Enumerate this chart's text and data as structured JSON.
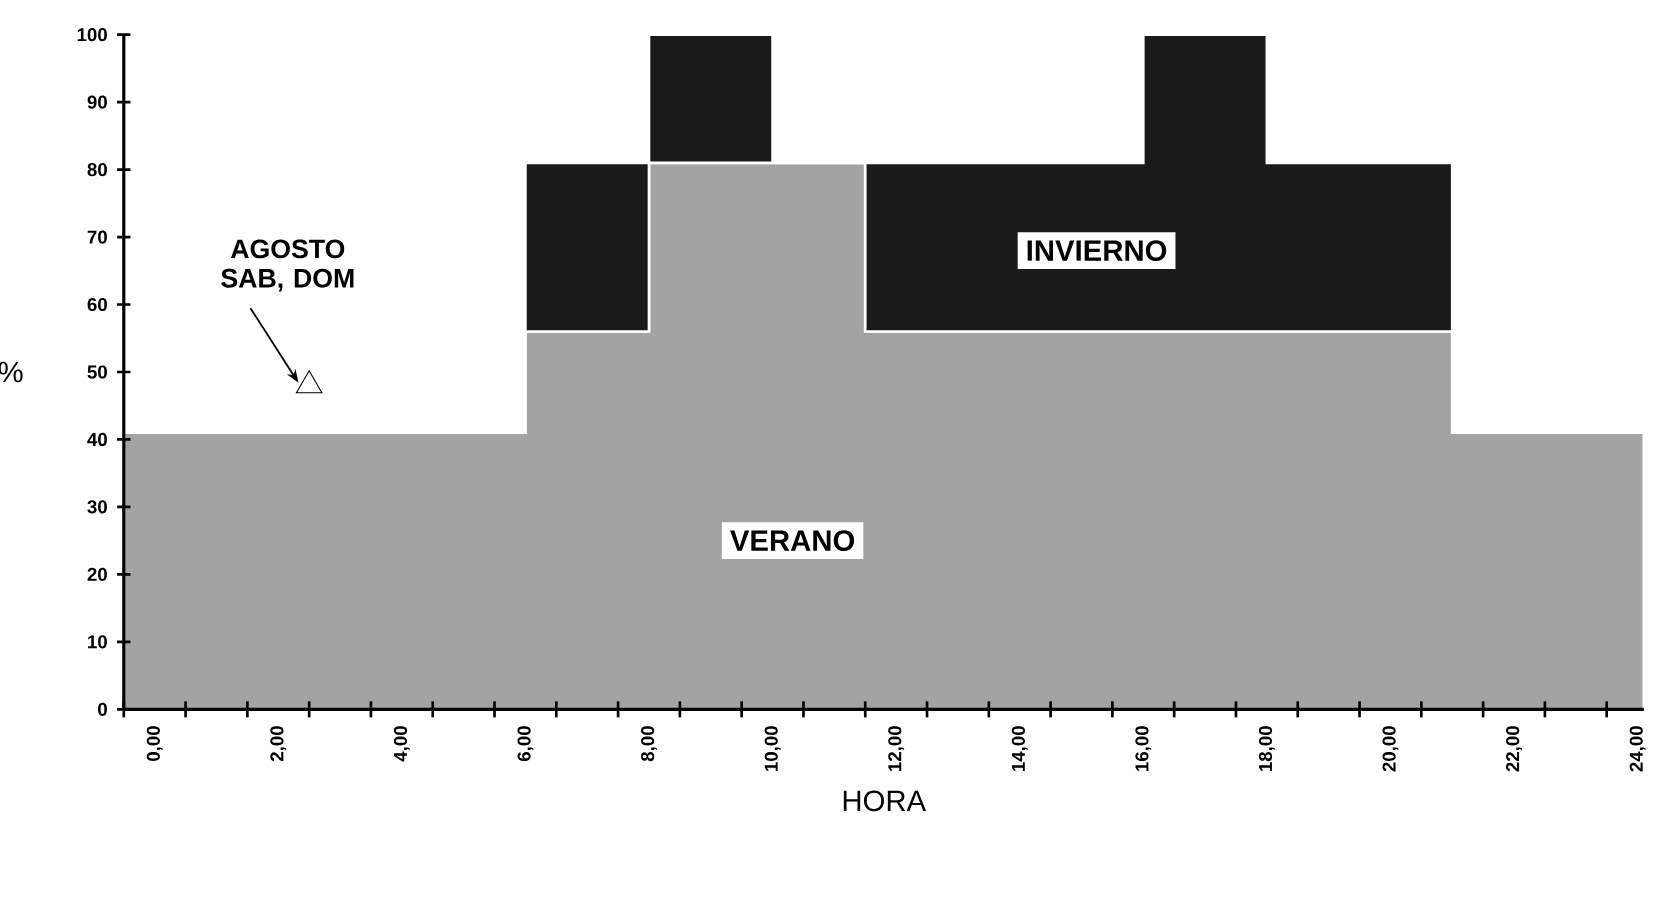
{
  "chart_data": {
    "type": "area",
    "stacked": true,
    "legend": false,
    "xlabel": "HORA",
    "ylabel": "%",
    "x": [
      -0.5,
      6,
      6,
      8,
      8,
      10,
      10,
      11.5,
      11.5,
      16,
      16,
      18,
      18,
      21,
      21,
      24.1
    ],
    "series": [
      {
        "name": "VERANO",
        "color": "#a3a3a3",
        "values": [
          41,
          41,
          56,
          56,
          81,
          81,
          81,
          81,
          56,
          56,
          56,
          56,
          56,
          56,
          41,
          41
        ]
      },
      {
        "name": "INVIERNO",
        "color": "#1a1a1a",
        "values": [
          0,
          0,
          25,
          25,
          19,
          19,
          0,
          0,
          25,
          25,
          44,
          44,
          25,
          25,
          0,
          0
        ]
      }
    ],
    "xlim": [
      -0.5,
      24.1
    ],
    "ylim": [
      0,
      100
    ],
    "xticks": [
      {
        "value": 0,
        "label": "0,00"
      },
      {
        "value": 2,
        "label": "2,00"
      },
      {
        "value": 4,
        "label": "4,00"
      },
      {
        "value": 6,
        "label": "6,00"
      },
      {
        "value": 8,
        "label": "8,00"
      },
      {
        "value": 10,
        "label": "10,00"
      },
      {
        "value": 12,
        "label": "12,00"
      },
      {
        "value": 14,
        "label": "14,00"
      },
      {
        "value": 16,
        "label": "16,00"
      },
      {
        "value": 18,
        "label": "18,00"
      },
      {
        "value": 20,
        "label": "20,00"
      },
      {
        "value": 22,
        "label": "22,00"
      },
      {
        "value": 24,
        "label": "24,00"
      },
      {
        "value": -0.5,
        "label": null
      },
      {
        "value": 0.5,
        "label": null
      },
      {
        "value": 1.5,
        "label": null
      },
      {
        "value": 2.5,
        "label": null
      },
      {
        "value": 3.5,
        "label": null
      },
      {
        "value": 4.5,
        "label": null
      },
      {
        "value": 5.5,
        "label": null
      },
      {
        "value": 6.5,
        "label": null
      },
      {
        "value": 7.5,
        "label": null
      },
      {
        "value": 8.5,
        "label": null
      },
      {
        "value": 9.5,
        "label": null
      },
      {
        "value": 10.5,
        "label": null
      },
      {
        "value": 11.5,
        "label": null
      },
      {
        "value": 12.5,
        "label": null
      },
      {
        "value": 13.5,
        "label": null
      },
      {
        "value": 14.5,
        "label": null
      },
      {
        "value": 15.5,
        "label": null
      },
      {
        "value": 16.5,
        "label": null
      },
      {
        "value": 17.5,
        "label": null
      },
      {
        "value": 18.5,
        "label": null
      },
      {
        "value": 19.5,
        "label": null
      },
      {
        "value": 20.5,
        "label": null
      },
      {
        "value": 21.5,
        "label": null
      },
      {
        "value": 22.5,
        "label": null
      },
      {
        "value": 23.5,
        "label": null
      }
    ],
    "yticks": [
      0,
      10,
      20,
      30,
      40,
      50,
      60,
      70,
      80,
      90,
      100
    ],
    "annotations": [
      {
        "text": "AGOSTO SAB, DOM",
        "x": 2.5,
        "y": 48
      }
    ]
  }
}
